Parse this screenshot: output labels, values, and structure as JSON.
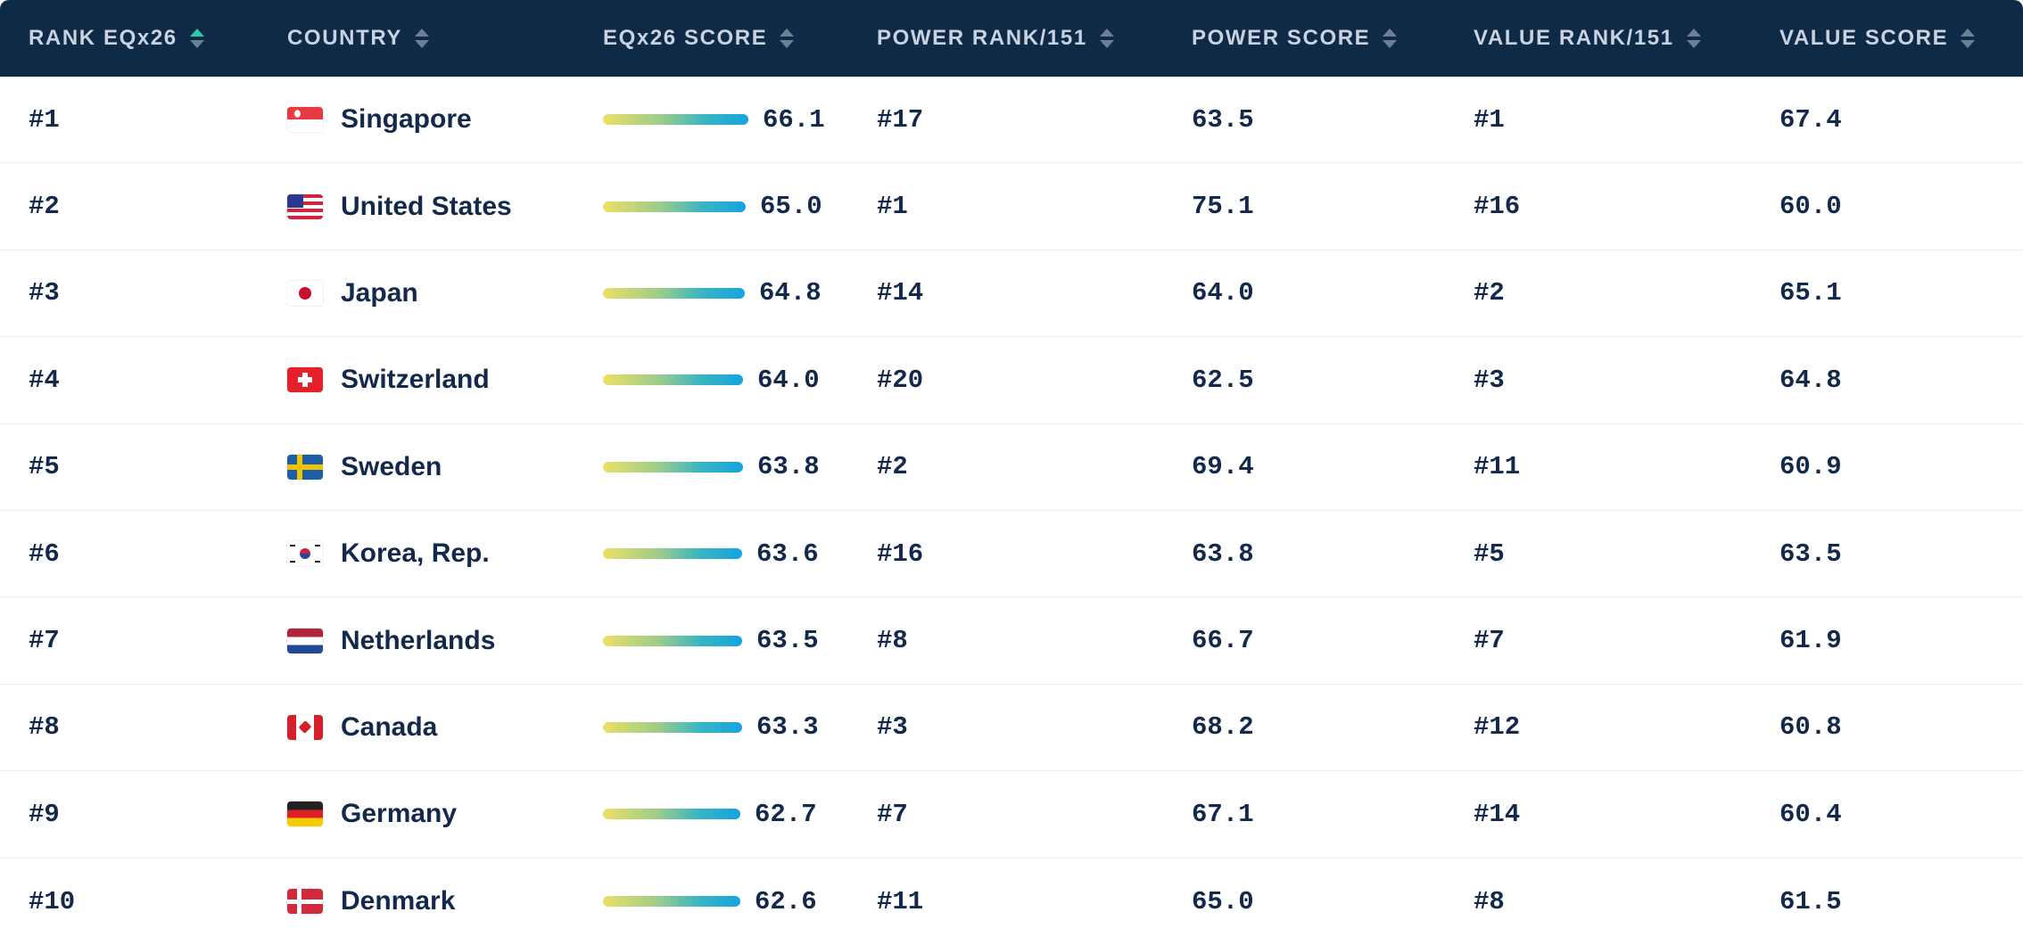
{
  "columns": [
    {
      "label": "RANK EQx26",
      "sort": "asc"
    },
    {
      "label": "COUNTRY",
      "sort": "none"
    },
    {
      "label": "EQx26 SCORE",
      "sort": "none"
    },
    {
      "label": "POWER RANK/151",
      "sort": "none"
    },
    {
      "label": "POWER SCORE",
      "sort": "none"
    },
    {
      "label": "VALUE RANK/151",
      "sort": "none"
    },
    {
      "label": "VALUE SCORE",
      "sort": "none"
    }
  ],
  "rows": [
    {
      "rank": "#1",
      "flag": "flag-singapore",
      "country": "Singapore",
      "score": "66.1",
      "bar_fraction": 0.661,
      "power_rank": "#17",
      "power_score": "63.5",
      "value_rank": "#1",
      "value_score": "67.4"
    },
    {
      "rank": "#2",
      "flag": "flag-united-states",
      "country": "United States",
      "score": "65.0",
      "bar_fraction": 0.65,
      "power_rank": "#1",
      "power_score": "75.1",
      "value_rank": "#16",
      "value_score": "60.0"
    },
    {
      "rank": "#3",
      "flag": "flag-japan",
      "country": "Japan",
      "score": "64.8",
      "bar_fraction": 0.648,
      "power_rank": "#14",
      "power_score": "64.0",
      "value_rank": "#2",
      "value_score": "65.1"
    },
    {
      "rank": "#4",
      "flag": "flag-switzerland",
      "country": "Switzerland",
      "score": "64.0",
      "bar_fraction": 0.64,
      "power_rank": "#20",
      "power_score": "62.5",
      "value_rank": "#3",
      "value_score": "64.8"
    },
    {
      "rank": "#5",
      "flag": "flag-sweden",
      "country": "Sweden",
      "score": "63.8",
      "bar_fraction": 0.638,
      "power_rank": "#2",
      "power_score": "69.4",
      "value_rank": "#11",
      "value_score": "60.9"
    },
    {
      "rank": "#6",
      "flag": "flag-korea",
      "country": "Korea, Rep.",
      "score": "63.6",
      "bar_fraction": 0.636,
      "power_rank": "#16",
      "power_score": "63.8",
      "value_rank": "#5",
      "value_score": "63.5"
    },
    {
      "rank": "#7",
      "flag": "flag-netherlands",
      "country": "Netherlands",
      "score": "63.5",
      "bar_fraction": 0.635,
      "power_rank": "#8",
      "power_score": "66.7",
      "value_rank": "#7",
      "value_score": "61.9"
    },
    {
      "rank": "#8",
      "flag": "flag-canada",
      "country": "Canada",
      "score": "63.3",
      "bar_fraction": 0.633,
      "power_rank": "#3",
      "power_score": "68.2",
      "value_rank": "#12",
      "value_score": "60.8"
    },
    {
      "rank": "#9",
      "flag": "flag-germany",
      "country": "Germany",
      "score": "62.7",
      "bar_fraction": 0.627,
      "power_rank": "#7",
      "power_score": "67.1",
      "value_rank": "#14",
      "value_score": "60.4"
    },
    {
      "rank": "#10",
      "flag": "flag-denmark",
      "country": "Denmark",
      "score": "62.6",
      "bar_fraction": 0.626,
      "power_rank": "#11",
      "power_score": "65.0",
      "value_rank": "#8",
      "value_score": "61.5"
    }
  ],
  "colors": {
    "header_bg": "#0f2a47",
    "sort_active": "#2ec7a0",
    "bar_start": "#ece066",
    "bar_end": "#14a4e0",
    "text": "#13294b"
  }
}
